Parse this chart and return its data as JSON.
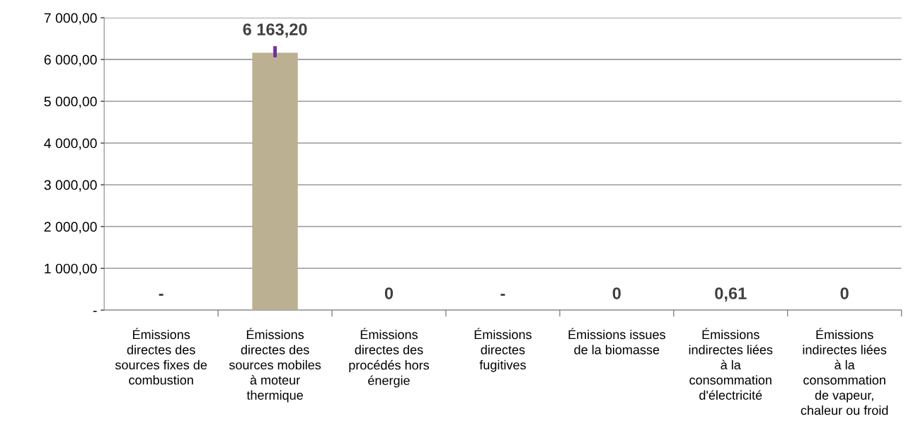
{
  "chart_data": {
    "type": "bar",
    "categories": [
      "Émissions\ndirectes des\nsources fixes de\ncombustion",
      "Émissions\ndirectes des\nsources mobiles\nà moteur\nthermique",
      "Émissions\ndirectes des\nprocédés hors\nénergie",
      "Émissions\ndirectes\nfugitives",
      "Émissions issues\nde la biomasse",
      "Émissions\nindirectes liées\nà la\nconsommation\nd'électricité",
      "Émissions\nindirectes liées\nà la\nconsommation\nde vapeur,\nchaleur ou froid"
    ],
    "values": [
      0,
      6163.2,
      0,
      0,
      0,
      0.61,
      0
    ],
    "value_labels": [
      "-",
      "6 163,20",
      "0",
      "-",
      "0",
      "0,61",
      "0"
    ],
    "errors": [
      null,
      [
        6050,
        6320
      ],
      null,
      null,
      null,
      null,
      null
    ],
    "color": "#bcb092",
    "ylim": [
      0,
      7000
    ],
    "yticks": [
      {
        "value": 0,
        "label": "-"
      },
      {
        "value": 1000,
        "label": "1 000,00"
      },
      {
        "value": 2000,
        "label": "2 000,00"
      },
      {
        "value": 3000,
        "label": "3 000,00"
      },
      {
        "value": 4000,
        "label": "4 000,00"
      },
      {
        "value": 5000,
        "label": "5 000,00"
      },
      {
        "value": 6000,
        "label": "6 000,00"
      },
      {
        "value": 7000,
        "label": "7 000,00"
      }
    ],
    "grid": "y",
    "legend": false
  }
}
